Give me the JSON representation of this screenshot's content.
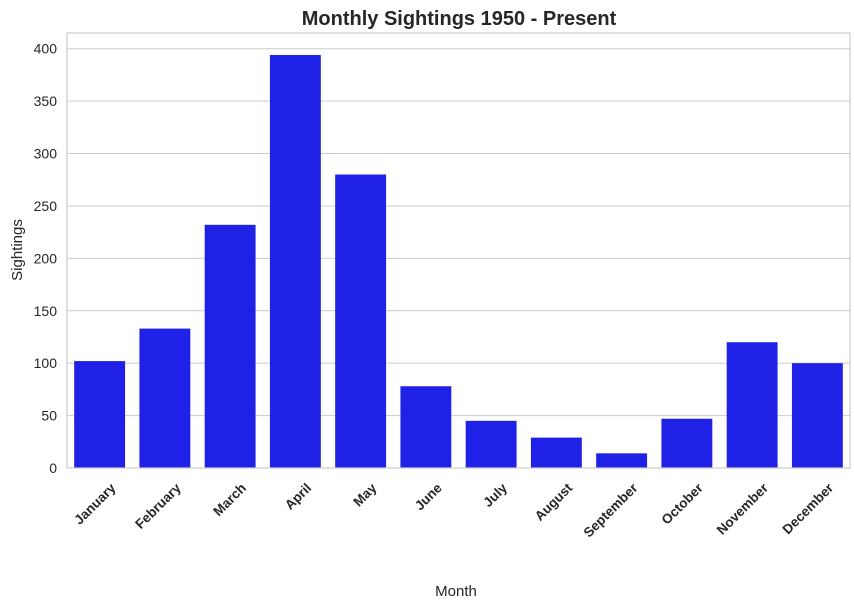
{
  "chart_data": {
    "type": "bar",
    "title": "Monthly Sightings 1950 - Present",
    "xlabel": "Month",
    "ylabel": "Sightings",
    "categories": [
      "January",
      "February",
      "March",
      "April",
      "May",
      "June",
      "July",
      "August",
      "September",
      "October",
      "November",
      "December"
    ],
    "values": [
      102,
      133,
      232,
      394,
      280,
      78,
      45,
      29,
      14,
      47,
      120,
      100
    ],
    "ylim": [
      0,
      415
    ],
    "yticks": [
      0,
      50,
      100,
      150,
      200,
      250,
      300,
      350,
      400
    ],
    "grid": "horizontal",
    "bar_color": "#1f22e6"
  }
}
